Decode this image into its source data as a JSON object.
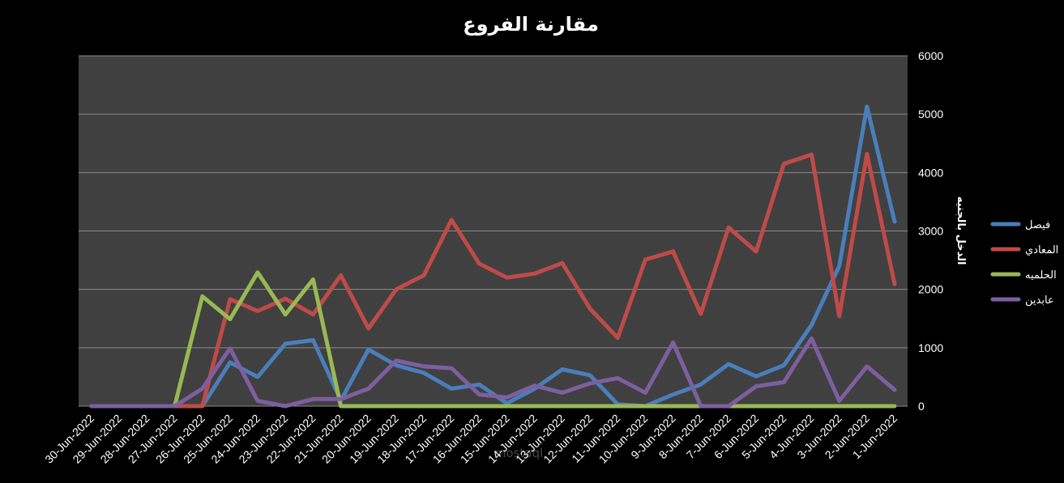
{
  "chart_data": {
    "type": "line",
    "title": "مقارنة الفروع",
    "xlabel": "",
    "ylabel": "الدخل بالجنيه",
    "ylim": [
      0,
      6000
    ],
    "yticks": [
      0,
      1000,
      2000,
      3000,
      4000,
      5000,
      6000
    ],
    "grid": true,
    "legend_position": "right",
    "categories": [
      "30-Jun-2022",
      "29-Jun-2022",
      "28-Jun-2022",
      "27-Jun-2022",
      "26-Jun-2022",
      "25-Jun-2022",
      "24-Jun-2022",
      "23-Jun-2022",
      "22-Jun-2022",
      "21-Jun-2022",
      "20-Jun-2022",
      "19-Jun-2022",
      "18-Jun-2022",
      "17-Jun-2022",
      "16-Jun-2022",
      "15-Jun-2022",
      "14-Jun-2022",
      "13-Jun-2022",
      "12-Jun-2022",
      "11-Jun-2022",
      "10-Jun-2022",
      "9-Jun-2022",
      "8-Jun-2022",
      "7-Jun-2022",
      "6-Jun-2022",
      "5-Jun-2022",
      "4-Jun-2022",
      "3-Jun-2022",
      "2-Jun-2022",
      "1-Jun-2022"
    ],
    "series": [
      {
        "name": "فيصل",
        "color": "#4a7ebb",
        "values": [
          0,
          0,
          0,
          0,
          0,
          750,
          500,
          1070,
          1130,
          100,
          970,
          700,
          570,
          300,
          370,
          50,
          300,
          630,
          530,
          30,
          0,
          200,
          370,
          720,
          510,
          700,
          1390,
          2400,
          5130,
          3160
        ]
      },
      {
        "name": "المعادي",
        "color": "#be4b48",
        "values": [
          0,
          0,
          0,
          0,
          0,
          1830,
          1630,
          1840,
          1570,
          2240,
          1330,
          2000,
          2240,
          3190,
          2440,
          2200,
          2270,
          2450,
          1670,
          1170,
          2510,
          2650,
          1580,
          3060,
          2650,
          4150,
          4310,
          1540,
          4320,
          2090
        ]
      },
      {
        "name": "الحلميه",
        "color": "#98b954",
        "values": [
          0,
          0,
          0,
          0,
          1880,
          1490,
          2290,
          1570,
          2170,
          0,
          0,
          0,
          0,
          0,
          0,
          0,
          0,
          0,
          0,
          0,
          0,
          0,
          0,
          0,
          0,
          0,
          0,
          0,
          0,
          0
        ]
      },
      {
        "name": "عابدين",
        "color": "#7d5fa0",
        "values": [
          0,
          0,
          0,
          0,
          300,
          990,
          90,
          0,
          120,
          120,
          300,
          780,
          680,
          650,
          200,
          150,
          350,
          230,
          390,
          480,
          230,
          1090,
          0,
          0,
          340,
          410,
          1160,
          90,
          680,
          280
        ]
      }
    ]
  },
  "watermark": "mostaql"
}
